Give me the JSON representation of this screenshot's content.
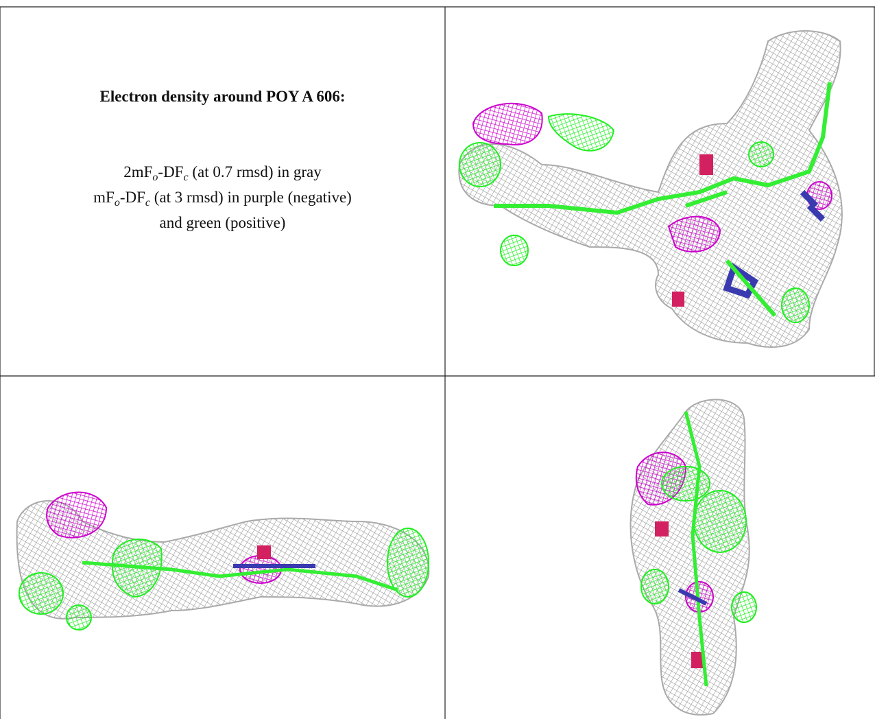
{
  "caption": {
    "title": "Electron density around POY A 606:",
    "lines": [
      [
        {
          "text": "2mF"
        },
        {
          "sub": "o"
        },
        {
          "text": "-DF"
        },
        {
          "sub": "c"
        },
        {
          "text": " (at 0.7 rmsd) in gray"
        }
      ],
      [
        {
          "text": "mF"
        },
        {
          "sub": "o"
        },
        {
          "text": "-DF"
        },
        {
          "sub": "c"
        },
        {
          "text": " (at 3 rmsd) in purple (negative)"
        }
      ],
      [
        {
          "text": "and green (positive)"
        }
      ]
    ]
  }
}
